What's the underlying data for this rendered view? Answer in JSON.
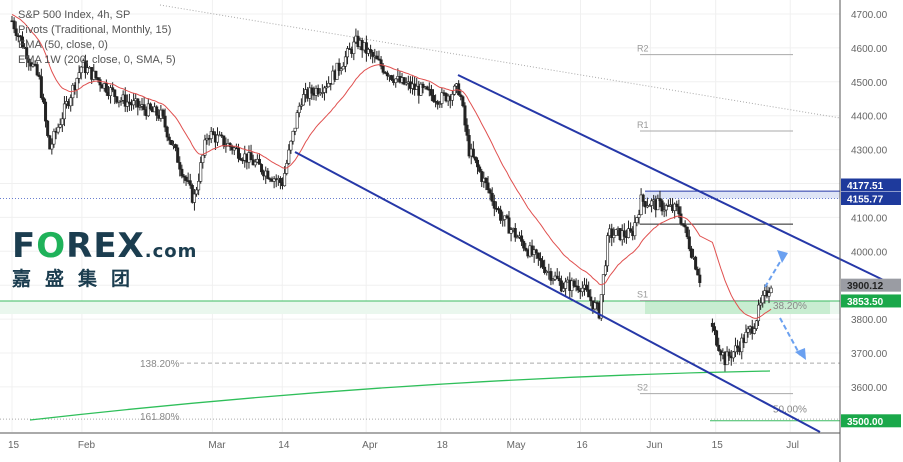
{
  "legend": {
    "title": "S&P 500 Index, 4h, SP",
    "line2": "Pivots (Traditional, Monthly, 15)",
    "line3": "EMA (50, close, 0)",
    "line4": "EMA 1W (200, close, 0, SMA, 5)"
  },
  "logo": {
    "brand": "FOREX.com",
    "cn": "嘉盛集团"
  },
  "colors": {
    "up": "#26a69a",
    "candle": "#222222",
    "ema50": "#e0504f",
    "sma200": "#2fbf5a",
    "channel": "#2638a8",
    "green_zone": "#b9e8c4",
    "blue_zone": "#c8d2f0"
  },
  "chart_data": {
    "type": "candlestick",
    "title": "S&P 500 Index, 4h, SP",
    "x_unit": "days since Jan 15",
    "xticks": [
      {
        "day": 0,
        "label": "15"
      },
      {
        "day": 15,
        "label": "Feb"
      },
      {
        "day": 43,
        "label": "Mar"
      },
      {
        "day": 58,
        "label": "14"
      },
      {
        "day": 76,
        "label": "Apr"
      },
      {
        "day": 92,
        "label": "18"
      },
      {
        "day": 107,
        "label": "May"
      },
      {
        "day": 122,
        "label": "16"
      },
      {
        "day": 137,
        "label": "Jun"
      },
      {
        "day": 151,
        "label": "15"
      },
      {
        "day": 167,
        "label": "Jul"
      }
    ],
    "yticks": [
      4700,
      4600,
      4500,
      4400,
      4300,
      4200,
      4100,
      4000,
      3900,
      3800,
      3700,
      3600
    ],
    "ylim": [
      3460,
      4720
    ],
    "price_path": [
      [
        0,
        4680
      ],
      [
        6,
        4500
      ],
      [
        8,
        4300
      ],
      [
        15,
        4550
      ],
      [
        23,
        4450
      ],
      [
        32,
        4400
      ],
      [
        39,
        4150
      ],
      [
        42,
        4350
      ],
      [
        48,
        4300
      ],
      [
        53,
        4250
      ],
      [
        58,
        4200
      ],
      [
        62,
        4450
      ],
      [
        68,
        4500
      ],
      [
        74,
        4620
      ],
      [
        79,
        4550
      ],
      [
        83,
        4500
      ],
      [
        92,
        4450
      ],
      [
        96,
        4480
      ],
      [
        98,
        4300
      ],
      [
        105,
        4100
      ],
      [
        111,
        4000
      ],
      [
        118,
        3900
      ],
      [
        122,
        3900
      ],
      [
        126,
        3820
      ],
      [
        128,
        4050
      ],
      [
        133,
        4050
      ],
      [
        135,
        4150
      ],
      [
        143,
        4120
      ],
      [
        147,
        3950
      ],
      [
        148,
        3900
      ],
      [
        150,
        3780
      ],
      [
        153,
        3680
      ],
      [
        156,
        3720
      ],
      [
        159,
        3780
      ],
      [
        161,
        3850
      ],
      [
        163,
        3910
      ]
    ],
    "pivots": [
      {
        "label": "R2",
        "value": 4580
      },
      {
        "label": "R1",
        "value": 4355
      },
      {
        "label": "S1",
        "value": 3855
      },
      {
        "label": "S2",
        "value": 3580
      }
    ],
    "fib": [
      {
        "label": "38.20%",
        "value": 3853.5
      },
      {
        "label": "50.00%",
        "value": 3500
      },
      {
        "label": "138.20%",
        "value": 3670
      },
      {
        "label": "161.80%",
        "value": 3500
      }
    ],
    "price_labels": [
      {
        "label": "4177.51",
        "kind": "blue"
      },
      {
        "label": "4155.77",
        "kind": "blue"
      },
      {
        "label": "3900.12",
        "kind": "gray"
      },
      {
        "label": "3853.50",
        "kind": "green"
      },
      {
        "label": "3500.00",
        "kind": "green"
      }
    ]
  }
}
